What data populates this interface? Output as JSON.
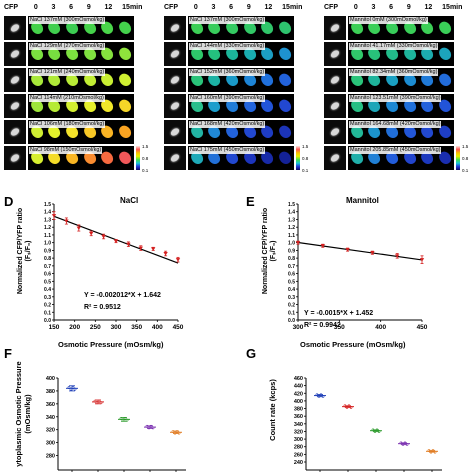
{
  "top": {
    "panels": [
      {
        "cfp_label": "CFP",
        "time_labels": [
          "0",
          "3",
          "6",
          "9",
          "12",
          "15min"
        ],
        "rows": [
          {
            "label": "NaCl 137mM (300mOsmol/kg)",
            "colors": [
              "#45d24a",
              "#40cf4e",
              "#3ccd52",
              "#45d24a",
              "#4ad64a",
              "#44d24c"
            ]
          },
          {
            "label": "NaCl 129mM (270mOsmol/kg)",
            "colors": [
              "#7be040",
              "#78df40",
              "#7de040",
              "#80e040",
              "#86e23e",
              "#8fe33c"
            ]
          },
          {
            "label": "NaCl 121mM (240mOsmol/kg)",
            "colors": [
              "#a8e83a",
              "#b0ea38",
              "#b9ec36",
              "#c2ee34",
              "#c9ef33",
              "#d0f032"
            ]
          },
          {
            "label": "NaCl 114mM (210mOsmol/kg)",
            "colors": [
              "#9ee63a",
              "#b6eb36",
              "#d3ef30",
              "#e6f02c",
              "#f1e82a",
              "#f6d628"
            ]
          },
          {
            "label": "NaCl 106mM (180mOsmol/kg)",
            "colors": [
              "#cfee32",
              "#e2f02c",
              "#f3e22a",
              "#f8c826",
              "#f9b424",
              "#faa422"
            ]
          },
          {
            "label": "NaCl 98mM (150mOsmol/kg)",
            "colors": [
              "#d7ef30",
              "#f4dc28",
              "#f9b624",
              "#fa8c30",
              "#f76a40",
              "#f1585a"
            ]
          }
        ],
        "colorbar_ticks": [
          "1.5",
          "0.8",
          "0.1"
        ]
      },
      {
        "cfp_label": "CFP",
        "time_labels": [
          "0",
          "3",
          "6",
          "9",
          "12",
          "15min"
        ],
        "rows": [
          {
            "label": "NaCl 137mM (300mOsmol/kg)",
            "colors": [
              "#3ccf56",
              "#38cd5c",
              "#34ca62",
              "#32c866",
              "#30c66a",
              "#2ec46e"
            ]
          },
          {
            "label": "NaCl 144mM (330mOsmol/kg)",
            "colors": [
              "#2ec86a",
              "#24c07e",
              "#1cb69a",
              "#1aacb0",
              "#1c9ec4",
              "#1e92d0"
            ]
          },
          {
            "label": "NaCl 152mM (360mOsmol/kg)",
            "colors": [
              "#2ac47a",
              "#1cb2a4",
              "#1a9ac8",
              "#1d84d6",
              "#2070dc",
              "#2262dc"
            ]
          },
          {
            "label": "NaCl 160mM (390mOsmol/kg)",
            "colors": [
              "#28bf8c",
              "#1c9ecc",
              "#207cd8",
              "#2264dc",
              "#2254d8",
              "#2248d2"
            ]
          },
          {
            "label": "NaCl 168mM (420mOsmol/kg)",
            "colors": [
              "#22b4a4",
              "#2088d6",
              "#2262da",
              "#2248d0",
              "#1e3cc4",
              "#1c34b8"
            ]
          },
          {
            "label": "NaCl 175mM (450mOsmol/kg)",
            "colors": [
              "#1eaab8",
              "#2270d8",
              "#2248d0",
              "#1c34bc",
              "#182aa8",
              "#142298"
            ]
          }
        ],
        "colorbar_ticks": [
          "1.5",
          "0.8",
          "0.1"
        ]
      },
      {
        "cfp_label": "CFP",
        "time_labels": [
          "0",
          "3",
          "6",
          "9",
          "12",
          "15min"
        ],
        "rows": [
          {
            "label": "Mannitol 0mM (300mOsmol/kg)",
            "colors": [
              "#3ccf56",
              "#3acf58",
              "#38cd5a",
              "#3acf58",
              "#3ccf56",
              "#3acf58"
            ]
          },
          {
            "label": "Mannitol 41.17mM (330mOsmol/kg)",
            "colors": [
              "#30c86a",
              "#28c27a",
              "#22bc8a",
              "#1eb49c",
              "#1cacae",
              "#1ca4bc"
            ]
          },
          {
            "label": "Mannitol 82.34mM (360mOsmol/kg)",
            "colors": [
              "#2ac47a",
              "#1eb49c",
              "#1aa0c2",
              "#1c8cd2",
              "#207ad8",
              "#226cdc"
            ]
          },
          {
            "label": "Mannitol 123.51mM (390mOsmol/kg)",
            "colors": [
              "#26c084",
              "#1ca6b8",
              "#1c88d4",
              "#2070da",
              "#2260dc",
              "#2254d8"
            ]
          },
          {
            "label": "Mannitol 164.68mM (420mOsmol/kg)",
            "colors": [
              "#22b898",
              "#1c94cc",
              "#206ed8",
              "#2256d8",
              "#2248d0",
              "#1e3ec6"
            ]
          },
          {
            "label": "Mannitol 205.85mM (450mOsmol/kg)",
            "colors": [
              "#20b0aa",
              "#2080d6",
              "#225cda",
              "#2244cc",
              "#1c38be",
              "#1a2eb0"
            ]
          }
        ],
        "colorbar_ticks": [
          "1.5",
          "0.8",
          "0.1"
        ]
      }
    ]
  },
  "panel_D": {
    "letter": "D",
    "title": "NaCl",
    "ylabel_line1": "Normalized CFP/YFP ratio",
    "ylabel_line2": "(Fₛ/F₀)",
    "xlabel": "Osmotic Pressure (mOsm/kg)",
    "equation": "Y = -0.002012*X + 1.642",
    "r2": "R² = 0.9512",
    "chart_data": {
      "type": "scatter",
      "x": [
        150,
        180,
        210,
        240,
        270,
        300,
        330,
        360,
        390,
        420,
        450
      ],
      "y": [
        1.35,
        1.28,
        1.19,
        1.12,
        1.08,
        1.02,
        0.98,
        0.93,
        0.92,
        0.86,
        0.78
      ],
      "err": [
        0.05,
        0.04,
        0.04,
        0.03,
        0.03,
        0.02,
        0.03,
        0.03,
        0.02,
        0.03,
        0.03
      ],
      "fit": {
        "slope": -0.002012,
        "intercept": 1.642
      },
      "xlim": [
        150,
        450
      ],
      "ylim": [
        0.0,
        1.5
      ],
      "xticks": [
        "150",
        "200",
        "250",
        "300",
        "350",
        "400",
        "450"
      ],
      "yticks": [
        "0.0",
        "0.1",
        "0.2",
        "0.3",
        "0.4",
        "0.5",
        "0.6",
        "0.7",
        "0.8",
        "0.9",
        "1.0",
        "1.1",
        "1.2",
        "1.3",
        "1.4",
        "1.5"
      ],
      "point_color": "#d42020"
    }
  },
  "panel_E": {
    "letter": "E",
    "title": "Mannitol",
    "ylabel_line1": "Normalized CFP/YFP ratio",
    "ylabel_line2": "(Fₛ/F₀)",
    "xlabel": "Osmotic Pressure (mOsm/kg)",
    "equation": "Y = -0.0015*X + 1.452",
    "r2": "R² = 0.9942",
    "chart_data": {
      "type": "scatter",
      "x": [
        300,
        330,
        360,
        390,
        420,
        450
      ],
      "y": [
        1.0,
        0.96,
        0.91,
        0.87,
        0.83,
        0.78
      ],
      "err": [
        0.02,
        0.02,
        0.02,
        0.02,
        0.03,
        0.05
      ],
      "fit": {
        "slope": -0.0015,
        "intercept": 1.452
      },
      "xlim": [
        300,
        450
      ],
      "ylim": [
        0.0,
        1.5
      ],
      "xticks": [
        "300",
        "350",
        "400",
        "450"
      ],
      "yticks": [
        "0.0",
        "0.1",
        "0.2",
        "0.3",
        "0.4",
        "0.5",
        "0.6",
        "0.7",
        "0.8",
        "0.9",
        "1.0",
        "1.1",
        "1.2",
        "1.3",
        "1.4",
        "1.5"
      ],
      "point_color": "#d42020"
    }
  },
  "panel_F": {
    "letter": "F",
    "ylabel_line1": "ytoplasmic Osmotic Pressure",
    "ylabel_line2": "(mOsm/kg)",
    "chart_data": {
      "type": "scatter",
      "x": [
        1,
        2,
        3,
        4,
        5
      ],
      "y": [
        384,
        363,
        336,
        324,
        316
      ],
      "err": [
        4,
        3,
        3,
        2,
        2
      ],
      "colors": [
        "#1f3fb8",
        "#d42020",
        "#2a9a2a",
        "#7a2fb0",
        "#e07a20"
      ],
      "ylim": [
        270,
        400
      ],
      "yticks": [
        "280",
        "300",
        "320",
        "340",
        "360",
        "380",
        "400"
      ]
    }
  },
  "panel_G": {
    "letter": "G",
    "ylabel": "Count rate (kcps)",
    "chart_data": {
      "type": "scatter",
      "x": [
        1,
        2,
        3,
        4,
        5
      ],
      "y": [
        414,
        385,
        322,
        288,
        268
      ],
      "err": [
        3,
        2,
        2,
        2,
        2
      ],
      "colors": [
        "#1f3fb8",
        "#d42020",
        "#2a9a2a",
        "#7a2fb0",
        "#e07a20"
      ],
      "ylim": [
        240,
        460
      ],
      "yticks": [
        "240",
        "260",
        "280",
        "300",
        "320",
        "340",
        "360",
        "380",
        "400",
        "420",
        "440",
        "460"
      ]
    }
  }
}
